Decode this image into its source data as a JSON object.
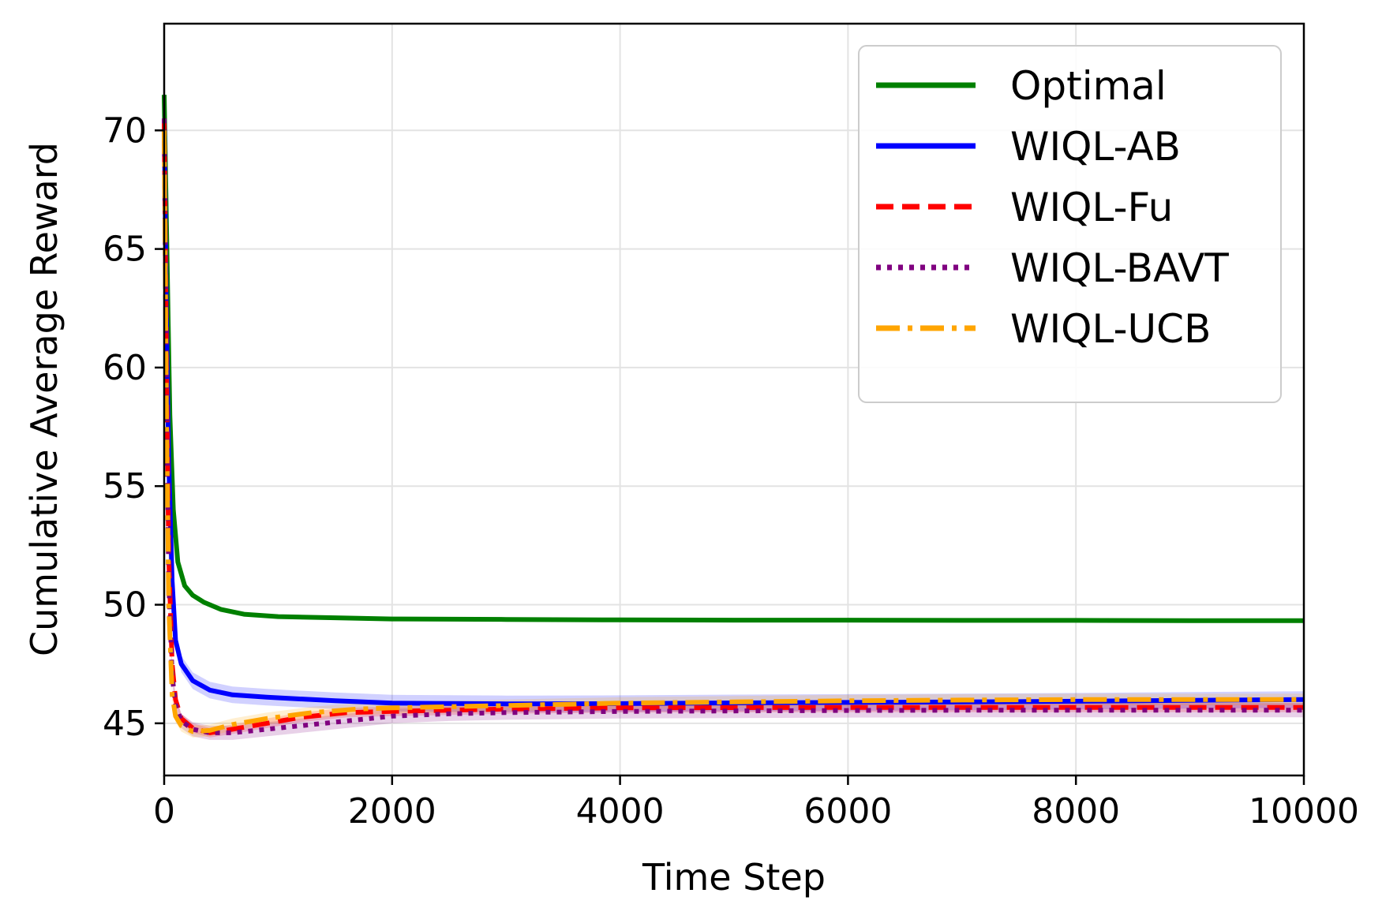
{
  "chart_data": {
    "type": "line",
    "title": "",
    "xlabel": "Time Step",
    "ylabel": "Cumulative Average Reward",
    "xlim": [
      0,
      10000
    ],
    "ylim": [
      42.8,
      74.5
    ],
    "xticks": [
      0,
      2000,
      4000,
      6000,
      8000,
      10000
    ],
    "yticks": [
      45,
      50,
      55,
      60,
      65,
      70
    ],
    "grid": true,
    "legend_position": "top-right",
    "series": [
      {
        "name": "Optimal",
        "color": "#008000",
        "style": "solid",
        "band": 0,
        "points": [
          [
            0,
            71.5
          ],
          [
            20,
            66
          ],
          [
            50,
            58
          ],
          [
            80,
            54
          ],
          [
            120,
            51.8
          ],
          [
            180,
            50.8
          ],
          [
            250,
            50.4
          ],
          [
            350,
            50.1
          ],
          [
            500,
            49.8
          ],
          [
            700,
            49.6
          ],
          [
            1000,
            49.5
          ],
          [
            1500,
            49.45
          ],
          [
            2000,
            49.4
          ],
          [
            3000,
            49.38
          ],
          [
            4000,
            49.36
          ],
          [
            5000,
            49.35
          ],
          [
            6000,
            49.35
          ],
          [
            7000,
            49.34
          ],
          [
            8000,
            49.34
          ],
          [
            9000,
            49.33
          ],
          [
            10000,
            49.33
          ]
        ]
      },
      {
        "name": "WIQL-AB",
        "color": "#0000ff",
        "style": "solid",
        "band": 0.35,
        "points": [
          [
            0,
            70.5
          ],
          [
            20,
            62
          ],
          [
            40,
            56
          ],
          [
            70,
            51
          ],
          [
            100,
            48.5
          ],
          [
            150,
            47.5
          ],
          [
            250,
            46.8
          ],
          [
            400,
            46.4
          ],
          [
            600,
            46.2
          ],
          [
            900,
            46.1
          ],
          [
            1500,
            45.95
          ],
          [
            2000,
            45.85
          ],
          [
            3000,
            45.82
          ],
          [
            4000,
            45.83
          ],
          [
            5000,
            45.86
          ],
          [
            6000,
            45.88
          ],
          [
            7000,
            45.9
          ],
          [
            8000,
            45.93
          ],
          [
            9000,
            45.97
          ],
          [
            10000,
            46.0
          ]
        ]
      },
      {
        "name": "WIQL-Fu",
        "color": "#ff0000",
        "style": "dashed",
        "band": 0.2,
        "points": [
          [
            0,
            70.5
          ],
          [
            20,
            60
          ],
          [
            40,
            52
          ],
          [
            70,
            47.5
          ],
          [
            100,
            46
          ],
          [
            150,
            45.2
          ],
          [
            250,
            44.8
          ],
          [
            400,
            44.6
          ],
          [
            600,
            44.75
          ],
          [
            900,
            45.0
          ],
          [
            1200,
            45.25
          ],
          [
            1600,
            45.45
          ],
          [
            2000,
            45.5
          ],
          [
            3000,
            45.6
          ],
          [
            4000,
            45.65
          ],
          [
            5000,
            45.66
          ],
          [
            6000,
            45.67
          ],
          [
            7000,
            45.67
          ],
          [
            8000,
            45.67
          ],
          [
            9000,
            45.67
          ],
          [
            10000,
            45.67
          ]
        ]
      },
      {
        "name": "WIQL-BAVT",
        "color": "#800080",
        "style": "dotted",
        "band": 0.3,
        "points": [
          [
            0,
            70.5
          ],
          [
            20,
            59
          ],
          [
            40,
            51
          ],
          [
            70,
            47
          ],
          [
            100,
            45.8
          ],
          [
            150,
            45.1
          ],
          [
            250,
            44.75
          ],
          [
            400,
            44.6
          ],
          [
            600,
            44.6
          ],
          [
            900,
            44.75
          ],
          [
            1300,
            44.95
          ],
          [
            1700,
            45.15
          ],
          [
            2000,
            45.3
          ],
          [
            2500,
            45.4
          ],
          [
            3000,
            45.45
          ],
          [
            4000,
            45.5
          ],
          [
            5000,
            45.52
          ],
          [
            6000,
            45.54
          ],
          [
            7000,
            45.55
          ],
          [
            8000,
            45.55
          ],
          [
            9000,
            45.55
          ],
          [
            10000,
            45.55
          ]
        ]
      },
      {
        "name": "WIQL-UCB",
        "color": "#ffa500",
        "style": "dashdot",
        "band": 0.25,
        "points": [
          [
            0,
            70.0
          ],
          [
            20,
            58
          ],
          [
            40,
            50
          ],
          [
            70,
            46.2
          ],
          [
            100,
            45.3
          ],
          [
            150,
            44.9
          ],
          [
            250,
            44.65
          ],
          [
            400,
            44.7
          ],
          [
            600,
            44.95
          ],
          [
            900,
            45.2
          ],
          [
            1300,
            45.45
          ],
          [
            1700,
            45.6
          ],
          [
            2000,
            45.65
          ],
          [
            3000,
            45.75
          ],
          [
            4000,
            45.85
          ],
          [
            5000,
            45.9
          ],
          [
            6000,
            45.95
          ],
          [
            7000,
            45.98
          ],
          [
            8000,
            46.0
          ],
          [
            9000,
            46.0
          ],
          [
            10000,
            46.0
          ]
        ]
      }
    ]
  }
}
